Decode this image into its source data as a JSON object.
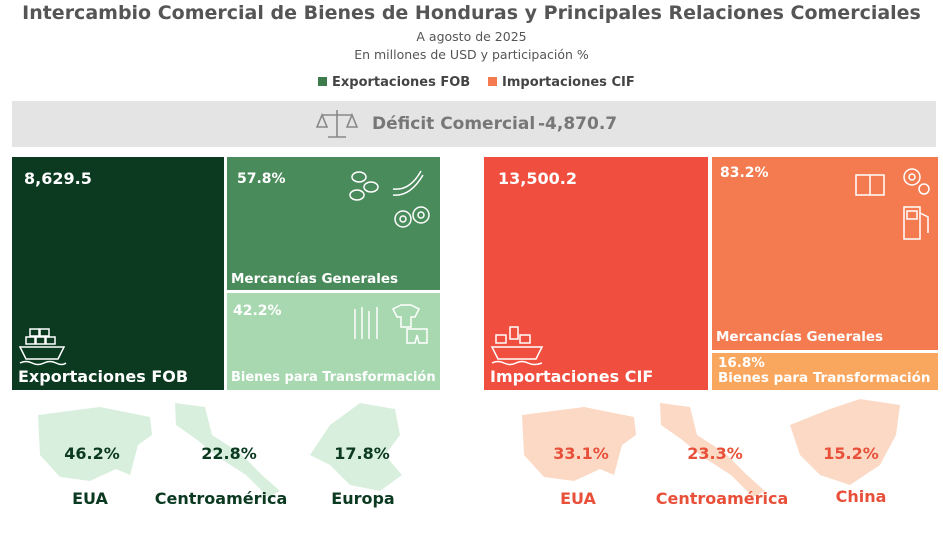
{
  "header": {
    "title": "Intercambio Comercial de Bienes de Honduras y Principales Relaciones Comerciales",
    "subtitle": "A agosto de 2025",
    "units": "En millones de USD y participación %"
  },
  "legend": [
    "Exportaciones FOB",
    "Importaciones CIF"
  ],
  "deficit": {
    "label": "Déficit Comercial",
    "value": "-4,870.7"
  },
  "exports": {
    "total": "8,629.5",
    "label": "Exportaciones FOB",
    "segments": [
      {
        "share": "57.8%",
        "label": "Mercancías Generales"
      },
      {
        "share": "42.2%",
        "label": "Bienes para Transformación"
      }
    ],
    "partners": [
      {
        "share": "46.2%",
        "name": "EUA"
      },
      {
        "share": "22.8%",
        "name": "Centroamérica"
      },
      {
        "share": "17.8%",
        "name": "Europa"
      }
    ]
  },
  "imports": {
    "total": "13,500.2",
    "label": "Importaciones CIF",
    "segments": [
      {
        "share": "83.2%",
        "label": "Mercancías Generales"
      },
      {
        "share": "16.8%",
        "label": "Bienes para Transformación"
      }
    ],
    "partners": [
      {
        "share": "33.1%",
        "name": "EUA"
      },
      {
        "share": "23.3%",
        "name": "Centroamérica"
      },
      {
        "share": "15.2%",
        "name": "China"
      }
    ]
  }
}
